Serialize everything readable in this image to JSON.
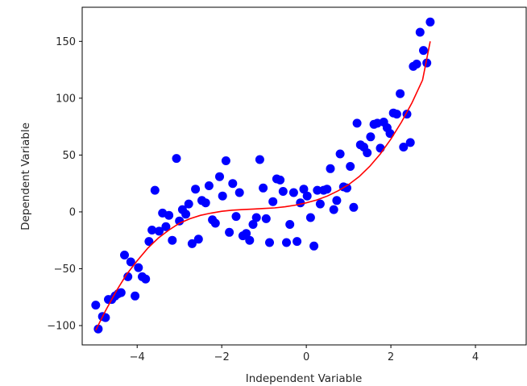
{
  "chart_data": {
    "type": "scatter",
    "xlabel": "Independent Variable",
    "ylabel": "Dependent Variable",
    "xlim": [
      -5.3,
      5.2
    ],
    "ylim": [
      -117,
      180
    ],
    "x_ticks": [
      -4,
      -2,
      0,
      2,
      4
    ],
    "x_tick_labels": [
      "−4",
      "−2",
      "0",
      "2",
      "4"
    ],
    "y_ticks": [
      -100,
      -50,
      0,
      50,
      100,
      150
    ],
    "y_tick_labels": [
      "−100",
      "−50",
      "0",
      "50",
      "100",
      "150"
    ],
    "grid": false,
    "series": [
      {
        "kind": "scatter",
        "color": "#0000ff",
        "points": [
          [
            -4.98,
            -82
          ],
          [
            -4.92,
            -103
          ],
          [
            -4.82,
            -92
          ],
          [
            -4.75,
            -93
          ],
          [
            -4.68,
            -77
          ],
          [
            -4.6,
            -77
          ],
          [
            -4.52,
            -74
          ],
          [
            -4.45,
            -72
          ],
          [
            -4.38,
            -71
          ],
          [
            -4.3,
            -38
          ],
          [
            -4.22,
            -57
          ],
          [
            -4.15,
            -44
          ],
          [
            -4.05,
            -74
          ],
          [
            -3.97,
            -49
          ],
          [
            -3.88,
            -57
          ],
          [
            -3.8,
            -59
          ],
          [
            -3.72,
            -26
          ],
          [
            -3.65,
            -16
          ],
          [
            -3.58,
            19
          ],
          [
            -3.48,
            -17
          ],
          [
            -3.4,
            -1
          ],
          [
            -3.32,
            -13
          ],
          [
            -3.25,
            -3
          ],
          [
            -3.17,
            -25
          ],
          [
            -3.07,
            47
          ],
          [
            -3.0,
            -8
          ],
          [
            -2.93,
            2
          ],
          [
            -2.85,
            -2
          ],
          [
            -2.78,
            7
          ],
          [
            -2.7,
            -28
          ],
          [
            -2.62,
            20
          ],
          [
            -2.55,
            -24
          ],
          [
            -2.47,
            10
          ],
          [
            -2.38,
            8
          ],
          [
            -2.3,
            23
          ],
          [
            -2.22,
            -7
          ],
          [
            -2.15,
            -10
          ],
          [
            -2.05,
            31
          ],
          [
            -1.98,
            14
          ],
          [
            -1.9,
            45
          ],
          [
            -1.82,
            -18
          ],
          [
            -1.74,
            25
          ],
          [
            -1.66,
            -4
          ],
          [
            -1.58,
            17
          ],
          [
            -1.5,
            -21
          ],
          [
            -1.42,
            -19
          ],
          [
            -1.34,
            -25
          ],
          [
            -1.26,
            -11
          ],
          [
            -1.18,
            -5
          ],
          [
            -1.1,
            46
          ],
          [
            -1.02,
            21
          ],
          [
            -0.95,
            -6
          ],
          [
            -0.87,
            -27
          ],
          [
            -0.79,
            9
          ],
          [
            -0.7,
            29
          ],
          [
            -0.62,
            28
          ],
          [
            -0.55,
            18
          ],
          [
            -0.47,
            -27
          ],
          [
            -0.39,
            -11
          ],
          [
            -0.3,
            17
          ],
          [
            -0.22,
            -26
          ],
          [
            -0.14,
            8
          ],
          [
            -0.06,
            20
          ],
          [
            0.02,
            14
          ],
          [
            0.1,
            -5
          ],
          [
            0.18,
            -30
          ],
          [
            0.26,
            19
          ],
          [
            0.33,
            7
          ],
          [
            0.41,
            19
          ],
          [
            0.49,
            20
          ],
          [
            0.57,
            38
          ],
          [
            0.65,
            2
          ],
          [
            0.72,
            10
          ],
          [
            0.8,
            51
          ],
          [
            0.88,
            22
          ],
          [
            0.96,
            21
          ],
          [
            1.04,
            40
          ],
          [
            1.12,
            4
          ],
          [
            1.2,
            78
          ],
          [
            1.28,
            59
          ],
          [
            1.36,
            57
          ],
          [
            1.44,
            52
          ],
          [
            1.52,
            66
          ],
          [
            1.6,
            77
          ],
          [
            1.68,
            78
          ],
          [
            1.75,
            56
          ],
          [
            1.83,
            79
          ],
          [
            1.91,
            74
          ],
          [
            1.98,
            69
          ],
          [
            2.06,
            87
          ],
          [
            2.14,
            86
          ],
          [
            2.22,
            104
          ],
          [
            2.3,
            57
          ],
          [
            2.38,
            86
          ],
          [
            2.46,
            61
          ],
          [
            2.53,
            128
          ],
          [
            2.61,
            130
          ],
          [
            2.69,
            158
          ],
          [
            2.77,
            142
          ],
          [
            2.85,
            131
          ],
          [
            2.93,
            167
          ]
        ]
      },
      {
        "kind": "line",
        "color": "#ff0000",
        "points": [
          [
            -4.98,
            -104
          ],
          [
            -4.75,
            -87
          ],
          [
            -4.5,
            -70
          ],
          [
            -4.25,
            -55
          ],
          [
            -4.0,
            -43
          ],
          [
            -3.75,
            -32
          ],
          [
            -3.5,
            -23
          ],
          [
            -3.25,
            -16
          ],
          [
            -3.0,
            -10
          ],
          [
            -2.75,
            -6
          ],
          [
            -2.5,
            -3
          ],
          [
            -2.25,
            -1
          ],
          [
            -2.0,
            0.5
          ],
          [
            -1.75,
            1.5
          ],
          [
            -1.5,
            2
          ],
          [
            -1.25,
            2.5
          ],
          [
            -1.0,
            3
          ],
          [
            -0.75,
            3.5
          ],
          [
            -0.5,
            4.5
          ],
          [
            -0.25,
            6
          ],
          [
            0.0,
            8
          ],
          [
            0.25,
            10.5
          ],
          [
            0.5,
            14
          ],
          [
            0.75,
            18.5
          ],
          [
            1.0,
            24
          ],
          [
            1.25,
            31
          ],
          [
            1.5,
            40
          ],
          [
            1.75,
            51
          ],
          [
            2.0,
            64
          ],
          [
            2.25,
            79
          ],
          [
            2.5,
            96
          ],
          [
            2.75,
            116
          ],
          [
            2.93,
            150
          ]
        ]
      }
    ]
  }
}
